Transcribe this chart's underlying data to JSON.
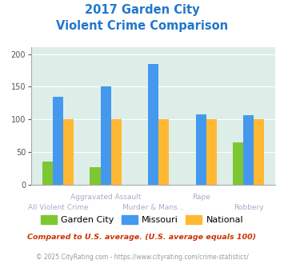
{
  "title_line1": "2017 Garden City",
  "title_line2": "Violent Crime Comparison",
  "categories": [
    "All Violent Crime",
    "Aggravated Assault",
    "Murder & Mans...",
    "Rape",
    "Robbery"
  ],
  "top_labels": [
    "",
    "Aggravated Assault",
    "",
    "Rape",
    ""
  ],
  "bottom_labels": [
    "All Violent Crime",
    "",
    "Murder & Mans...",
    "",
    "Robbery"
  ],
  "garden_city": [
    35,
    27,
    0,
    0,
    65
  ],
  "missouri": [
    135,
    150,
    185,
    108,
    106
  ],
  "national": [
    100,
    100,
    100,
    100,
    100
  ],
  "garden_city_color": "#7dc832",
  "missouri_color": "#4499ee",
  "national_color": "#ffb833",
  "ylim": [
    0,
    210
  ],
  "yticks": [
    0,
    50,
    100,
    150,
    200
  ],
  "bg_color": "#ddeee8",
  "title_color": "#2277cc",
  "legend_labels": [
    "Garden City",
    "Missouri",
    "National"
  ],
  "footnote1": "Compared to U.S. average. (U.S. average equals 100)",
  "footnote2": "© 2025 CityRating.com - https://www.cityrating.com/crime-statistics/",
  "footnote1_color": "#cc3300",
  "footnote2_color": "#999999",
  "url_color": "#3388cc"
}
